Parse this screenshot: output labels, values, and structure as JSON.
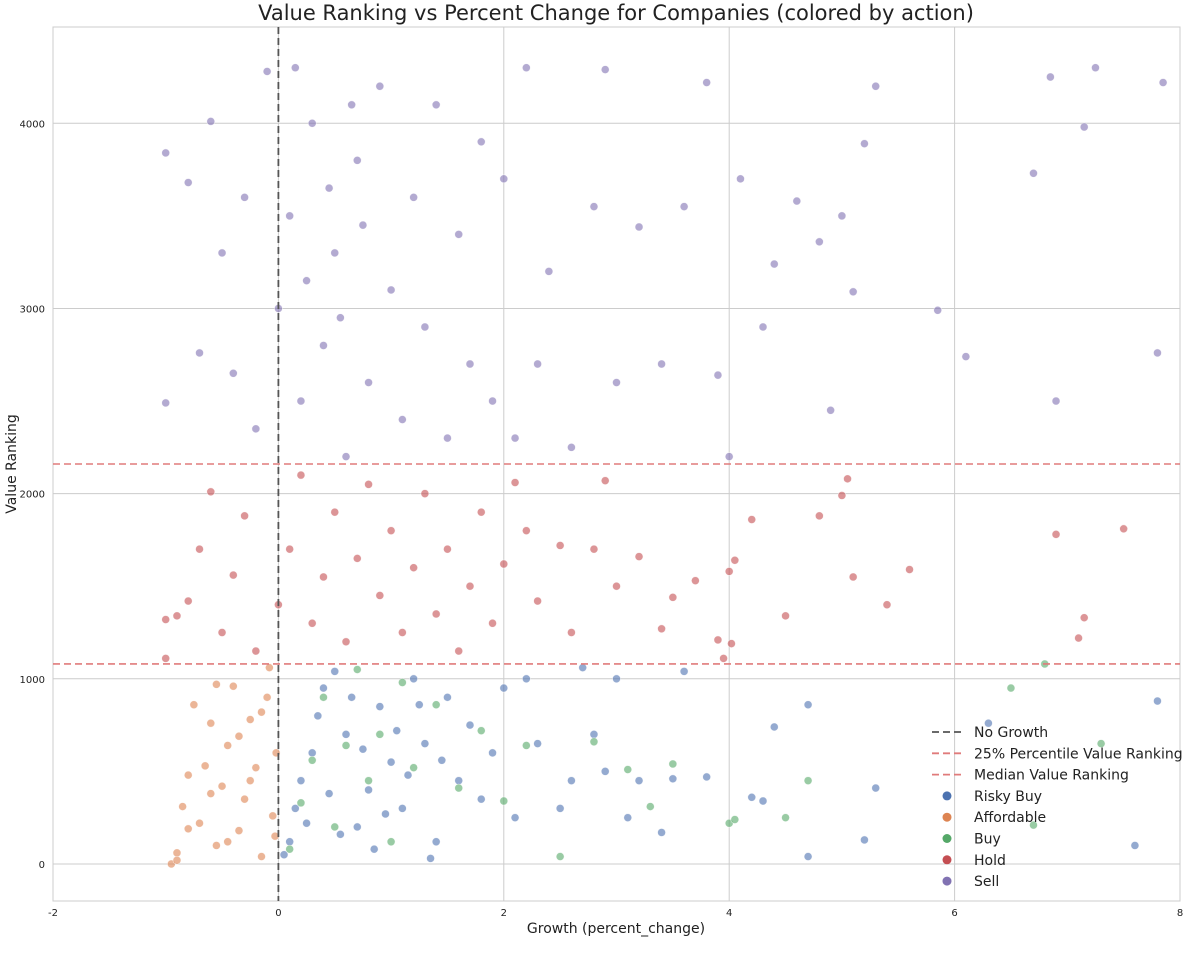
{
  "chart_data": {
    "type": "scatter",
    "title": "Value Ranking vs Percent Change for Companies (colored by action)",
    "xlabel": "Growth (percent_change)",
    "ylabel": "Value Ranking",
    "xlim": [
      -2,
      8
    ],
    "ylim": [
      -200,
      4520
    ],
    "xticks": [
      -2,
      0,
      2,
      4,
      6,
      8
    ],
    "yticks": [
      0,
      1000,
      2000,
      3000,
      4000
    ],
    "grid": true,
    "legend_position": "lower-right",
    "reference_lines": [
      {
        "name": "No Growth",
        "orientation": "vertical",
        "value": 0,
        "color": "#555555",
        "style": "dashed"
      },
      {
        "name": "25% Percentile Value Ranking",
        "orientation": "horizontal",
        "value": 1080,
        "color": "#e07b7b",
        "style": "dashed"
      },
      {
        "name": "Median Value Ranking",
        "orientation": "horizontal",
        "value": 2160,
        "color": "#e07b7b",
        "style": "dashed"
      }
    ],
    "series": [
      {
        "name": "Risky Buy",
        "color": "#4c72b0",
        "points": [
          [
            0.05,
            50
          ],
          [
            0.1,
            120
          ],
          [
            0.15,
            300
          ],
          [
            0.2,
            450
          ],
          [
            0.3,
            600
          ],
          [
            0.35,
            800
          ],
          [
            0.4,
            950
          ],
          [
            0.5,
            1040
          ],
          [
            0.6,
            700
          ],
          [
            0.7,
            200
          ],
          [
            0.8,
            400
          ],
          [
            0.9,
            850
          ],
          [
            1.0,
            550
          ],
          [
            1.1,
            300
          ],
          [
            1.2,
            1000
          ],
          [
            1.3,
            650
          ],
          [
            1.4,
            120
          ],
          [
            1.5,
            900
          ],
          [
            1.6,
            450
          ],
          [
            1.7,
            750
          ],
          [
            1.8,
            350
          ],
          [
            1.9,
            600
          ],
          [
            2.0,
            950
          ],
          [
            2.1,
            250
          ],
          [
            2.2,
            1000
          ],
          [
            2.3,
            650
          ],
          [
            2.5,
            300
          ],
          [
            2.6,
            450
          ],
          [
            2.7,
            1060
          ],
          [
            2.8,
            700
          ],
          [
            2.9,
            500
          ],
          [
            3.0,
            1000
          ],
          [
            3.1,
            250
          ],
          [
            3.2,
            450
          ],
          [
            3.4,
            170
          ],
          [
            3.5,
            460
          ],
          [
            3.6,
            1040
          ],
          [
            3.8,
            470
          ],
          [
            4.2,
            360
          ],
          [
            4.3,
            340
          ],
          [
            4.4,
            740
          ],
          [
            4.7,
            860
          ],
          [
            4.7,
            40
          ],
          [
            5.2,
            130
          ],
          [
            5.3,
            410
          ],
          [
            6.3,
            760
          ],
          [
            7.6,
            100
          ],
          [
            7.8,
            880
          ],
          [
            0.25,
            220
          ],
          [
            0.45,
            380
          ],
          [
            0.55,
            160
          ],
          [
            0.65,
            900
          ],
          [
            0.75,
            620
          ],
          [
            0.85,
            80
          ],
          [
            0.95,
            270
          ],
          [
            1.05,
            720
          ],
          [
            1.15,
            480
          ],
          [
            1.25,
            860
          ],
          [
            1.35,
            30
          ],
          [
            1.45,
            560
          ]
        ]
      },
      {
        "name": "Affordable",
        "color": "#dd8452",
        "points": [
          [
            -0.95,
            0
          ],
          [
            -0.9,
            60
          ],
          [
            -0.85,
            310
          ],
          [
            -0.8,
            480
          ],
          [
            -0.75,
            860
          ],
          [
            -0.7,
            220
          ],
          [
            -0.65,
            530
          ],
          [
            -0.6,
            760
          ],
          [
            -0.55,
            100
          ],
          [
            -0.5,
            420
          ],
          [
            -0.45,
            640
          ],
          [
            -0.4,
            960
          ],
          [
            -0.35,
            180
          ],
          [
            -0.3,
            350
          ],
          [
            -0.25,
            780
          ],
          [
            -0.2,
            520
          ],
          [
            -0.15,
            40
          ],
          [
            -0.1,
            900
          ],
          [
            -0.05,
            260
          ],
          [
            -0.02,
            600
          ],
          [
            -0.9,
            20
          ],
          [
            -0.8,
            190
          ],
          [
            -0.6,
            380
          ],
          [
            -0.55,
            970
          ],
          [
            -0.45,
            120
          ],
          [
            -0.35,
            690
          ],
          [
            -0.25,
            450
          ],
          [
            -0.15,
            820
          ],
          [
            -0.08,
            1060
          ],
          [
            -0.03,
            150
          ]
        ]
      },
      {
        "name": "Buy",
        "color": "#55a868",
        "points": [
          [
            0.1,
            80
          ],
          [
            0.2,
            330
          ],
          [
            0.3,
            560
          ],
          [
            0.4,
            900
          ],
          [
            0.5,
            200
          ],
          [
            0.6,
            640
          ],
          [
            0.7,
            1050
          ],
          [
            0.8,
            450
          ],
          [
            0.9,
            700
          ],
          [
            1.0,
            120
          ],
          [
            1.1,
            980
          ],
          [
            1.2,
            520
          ],
          [
            1.4,
            860
          ],
          [
            1.6,
            410
          ],
          [
            1.8,
            720
          ],
          [
            2.0,
            340
          ],
          [
            2.2,
            640
          ],
          [
            2.5,
            40
          ],
          [
            2.8,
            660
          ],
          [
            3.1,
            510
          ],
          [
            3.3,
            310
          ],
          [
            3.5,
            540
          ],
          [
            4.0,
            220
          ],
          [
            4.05,
            240
          ],
          [
            4.5,
            250
          ],
          [
            4.7,
            450
          ],
          [
            6.5,
            950
          ],
          [
            6.7,
            210
          ],
          [
            6.8,
            1080
          ],
          [
            7.3,
            650
          ]
        ]
      },
      {
        "name": "Hold",
        "color": "#c44e52",
        "points": [
          [
            -1.0,
            1320
          ],
          [
            -1.0,
            1110
          ],
          [
            -0.9,
            1340
          ],
          [
            -0.8,
            1420
          ],
          [
            -0.7,
            1700
          ],
          [
            -0.6,
            2010
          ],
          [
            -0.5,
            1250
          ],
          [
            -0.4,
            1560
          ],
          [
            -0.3,
            1880
          ],
          [
            -0.2,
            1150
          ],
          [
            0.0,
            1400
          ],
          [
            0.1,
            1700
          ],
          [
            0.2,
            2100
          ],
          [
            0.3,
            1300
          ],
          [
            0.4,
            1550
          ],
          [
            0.5,
            1900
          ],
          [
            0.6,
            1200
          ],
          [
            0.7,
            1650
          ],
          [
            0.8,
            2050
          ],
          [
            0.9,
            1450
          ],
          [
            1.0,
            1800
          ],
          [
            1.1,
            1250
          ],
          [
            1.2,
            1600
          ],
          [
            1.3,
            2000
          ],
          [
            1.4,
            1350
          ],
          [
            1.5,
            1700
          ],
          [
            1.6,
            1150
          ],
          [
            1.7,
            1500
          ],
          [
            1.8,
            1900
          ],
          [
            1.9,
            1300
          ],
          [
            2.0,
            1620
          ],
          [
            2.1,
            2060
          ],
          [
            2.2,
            1800
          ],
          [
            2.3,
            1420
          ],
          [
            2.5,
            1720
          ],
          [
            2.6,
            1250
          ],
          [
            2.8,
            1700
          ],
          [
            2.9,
            2070
          ],
          [
            3.0,
            1500
          ],
          [
            3.2,
            1660
          ],
          [
            3.4,
            1270
          ],
          [
            3.5,
            1440
          ],
          [
            3.7,
            1530
          ],
          [
            3.9,
            1210
          ],
          [
            4.0,
            1580
          ],
          [
            4.05,
            1640
          ],
          [
            4.2,
            1860
          ],
          [
            4.5,
            1340
          ],
          [
            4.8,
            1880
          ],
          [
            5.0,
            1990
          ],
          [
            5.1,
            1550
          ],
          [
            5.4,
            1400
          ],
          [
            5.6,
            1590
          ],
          [
            6.9,
            1780
          ],
          [
            7.1,
            1220
          ],
          [
            7.15,
            1330
          ],
          [
            7.5,
            1810
          ],
          [
            5.05,
            2080
          ],
          [
            4.02,
            1190
          ],
          [
            3.95,
            1110
          ]
        ]
      },
      {
        "name": "Sell",
        "color": "#8172b2",
        "points": [
          [
            -1.0,
            2490
          ],
          [
            -1.0,
            3840
          ],
          [
            -0.8,
            3680
          ],
          [
            -0.7,
            2760
          ],
          [
            -0.6,
            4010
          ],
          [
            -0.5,
            3300
          ],
          [
            -0.4,
            2650
          ],
          [
            -0.3,
            3600
          ],
          [
            -0.2,
            2350
          ],
          [
            -0.1,
            4280
          ],
          [
            0.0,
            3000
          ],
          [
            0.1,
            3500
          ],
          [
            0.2,
            2500
          ],
          [
            0.3,
            4000
          ],
          [
            0.4,
            2800
          ],
          [
            0.5,
            3300
          ],
          [
            0.6,
            2200
          ],
          [
            0.7,
            3800
          ],
          [
            0.8,
            2600
          ],
          [
            0.9,
            4200
          ],
          [
            1.0,
            3100
          ],
          [
            1.1,
            2400
          ],
          [
            1.2,
            3600
          ],
          [
            1.3,
            2900
          ],
          [
            1.4,
            4100
          ],
          [
            1.5,
            2300
          ],
          [
            1.6,
            3400
          ],
          [
            1.7,
            2700
          ],
          [
            1.8,
            3900
          ],
          [
            1.9,
            2500
          ],
          [
            2.0,
            3700
          ],
          [
            2.1,
            2300
          ],
          [
            2.2,
            4300
          ],
          [
            2.3,
            2700
          ],
          [
            2.4,
            3200
          ],
          [
            2.6,
            2250
          ],
          [
            2.8,
            3550
          ],
          [
            2.9,
            4290
          ],
          [
            3.0,
            2600
          ],
          [
            3.2,
            3440
          ],
          [
            3.4,
            2700
          ],
          [
            3.6,
            3550
          ],
          [
            3.8,
            4220
          ],
          [
            3.9,
            2640
          ],
          [
            4.0,
            2200
          ],
          [
            4.1,
            3700
          ],
          [
            4.3,
            2900
          ],
          [
            4.4,
            3240
          ],
          [
            4.6,
            3580
          ],
          [
            4.8,
            3360
          ],
          [
            4.9,
            2450
          ],
          [
            5.0,
            3500
          ],
          [
            5.1,
            3090
          ],
          [
            5.2,
            3890
          ],
          [
            5.3,
            4200
          ],
          [
            5.85,
            2990
          ],
          [
            6.1,
            2740
          ],
          [
            6.7,
            3730
          ],
          [
            6.85,
            4250
          ],
          [
            6.9,
            2500
          ],
          [
            7.15,
            3980
          ],
          [
            7.25,
            4300
          ],
          [
            7.8,
            2760
          ],
          [
            7.85,
            4220
          ],
          [
            0.15,
            4300
          ],
          [
            0.25,
            3150
          ],
          [
            0.45,
            3650
          ],
          [
            0.55,
            2950
          ],
          [
            0.65,
            4100
          ],
          [
            0.75,
            3450
          ]
        ]
      }
    ],
    "legend": [
      {
        "label": "No Growth",
        "kind": "line",
        "color": "#555555"
      },
      {
        "label": "25% Percentile Value Ranking",
        "kind": "line",
        "color": "#e07b7b"
      },
      {
        "label": "Median Value Ranking",
        "kind": "line",
        "color": "#e07b7b"
      },
      {
        "label": "Risky Buy",
        "kind": "marker",
        "color": "#4c72b0"
      },
      {
        "label": "Affordable",
        "kind": "marker",
        "color": "#dd8452"
      },
      {
        "label": "Buy",
        "kind": "marker",
        "color": "#55a868"
      },
      {
        "label": "Hold",
        "kind": "marker",
        "color": "#c44e52"
      },
      {
        "label": "Sell",
        "kind": "marker",
        "color": "#8172b2"
      }
    ]
  }
}
